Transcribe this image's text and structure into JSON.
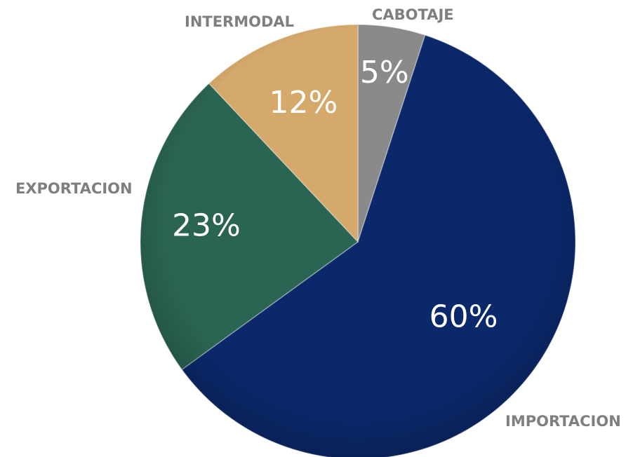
{
  "chart_data": {
    "type": "pie",
    "categories": [
      "CABOTAJE",
      "IMPORTACION",
      "EXPORTACION",
      "INTERMODAL"
    ],
    "values": [
      5,
      60,
      23,
      12
    ],
    "value_labels": [
      "5%",
      "60%",
      "23%",
      "12%"
    ],
    "colors": [
      "#8a8a8a",
      "#0b286b",
      "#2a6452",
      "#d5a86b"
    ]
  }
}
